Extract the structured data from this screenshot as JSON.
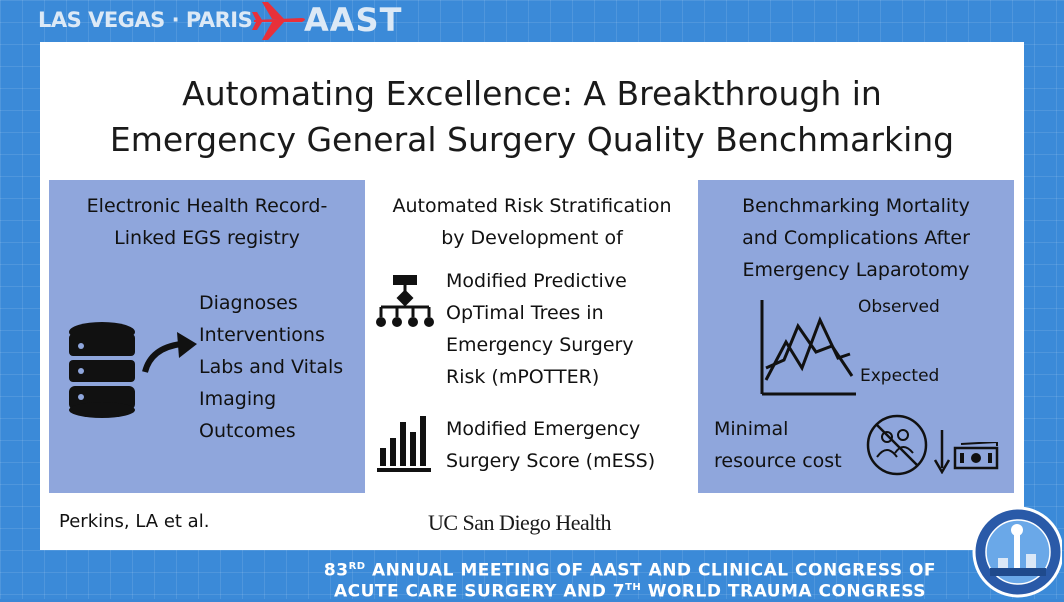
{
  "header": {
    "cities": "LAS VEGAS · PARIS",
    "org": "AAST"
  },
  "slide": {
    "title_line1": "Automating Excellence: A Breakthrough in",
    "title_line2": "Emergency General Surgery Quality Benchmarking",
    "left": {
      "heading1": "Electronic Health Record-",
      "heading2": "Linked EGS registry",
      "items": [
        "Diagnoses",
        "Interventions",
        "Labs and Vitals",
        "Imaging",
        "Outcomes"
      ]
    },
    "middle": {
      "heading1": "Automated Risk Stratification",
      "heading2": "by Development of",
      "tool1": [
        "Modified Predictive",
        "OpTimal Trees in",
        "Emergency Surgery",
        "Risk (mPOTTER)"
      ],
      "tool2": [
        "Modified Emergency",
        "Surgery Score (mESS)"
      ]
    },
    "right": {
      "heading1": "Benchmarking Mortality",
      "heading2": "and Complications After",
      "heading3": "Emergency Laparotomy",
      "observed": "Observed",
      "expected": "Expected",
      "cost1": "Minimal",
      "cost2": "resource cost"
    },
    "author": "Perkins, LA et al.",
    "logo": "UC San Diego Health"
  },
  "footer": {
    "line1_num": "83",
    "line1_sup": "RD",
    "line1_text": " ANNUAL MEETING OF AAST AND CLINICAL CONGRESS OF",
    "line2_a": "ACUTE CARE SURGERY AND 7",
    "line2_sup": "TH",
    "line2_b": " WORLD TRAUMA CONGRESS"
  },
  "colors": {
    "background": "#3b8ad8",
    "panel": "#8fa6dc",
    "plane": "#e8303a"
  }
}
